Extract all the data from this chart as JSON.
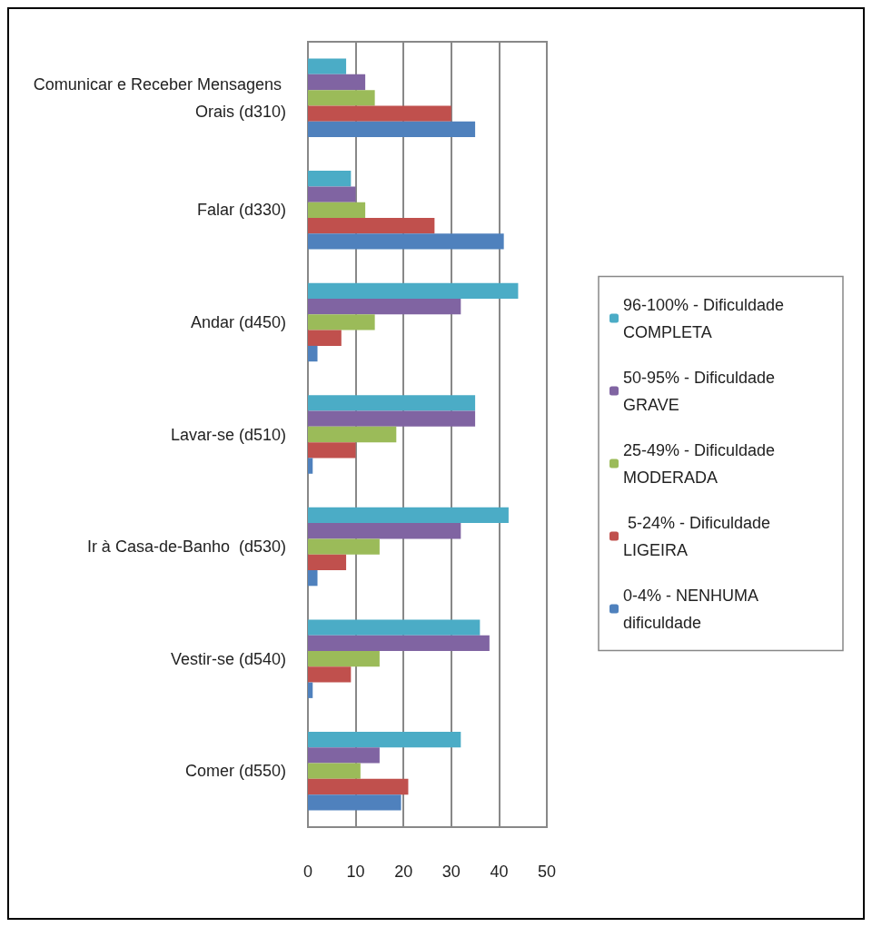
{
  "chart_data": {
    "type": "bar",
    "orientation": "horizontal",
    "categories": [
      "Comunicar e Receber Mensagens Orais (d310)",
      "Falar (d330)",
      "Andar (d450)",
      "Lavar-se (d510)",
      "Ir à Casa-de-Banho  (d530)",
      "Vestir-se (d540)",
      "Comer (d550)"
    ],
    "series": [
      {
        "name": "96-100% - Dificuldade COMPLETA",
        "color": "#4bacc6",
        "values": [
          8,
          9,
          44,
          35,
          42,
          36,
          32
        ]
      },
      {
        "name": "50-95% - Dificuldade GRAVE",
        "color": "#8064a2",
        "values": [
          12,
          10,
          32,
          35,
          32,
          38,
          15
        ]
      },
      {
        "name": "25-49% - Dificuldade MODERADA",
        "color": "#9bbb59",
        "values": [
          14,
          12,
          14,
          18.5,
          15,
          15,
          11
        ]
      },
      {
        "name": " 5-24% - Dificuldade LIGEIRA",
        "color": "#c0504d",
        "values": [
          30,
          26.5,
          7,
          10,
          8,
          9,
          21
        ]
      },
      {
        "name": "0-4% - NENHUMA dificuldade",
        "color": "#4f81bd",
        "values": [
          35,
          41,
          2,
          1,
          2,
          1,
          19.5
        ]
      }
    ],
    "xlim": [
      0,
      50
    ],
    "xticks": [
      0,
      10,
      20,
      30,
      40,
      50
    ],
    "grid": "x",
    "legend": "right"
  }
}
